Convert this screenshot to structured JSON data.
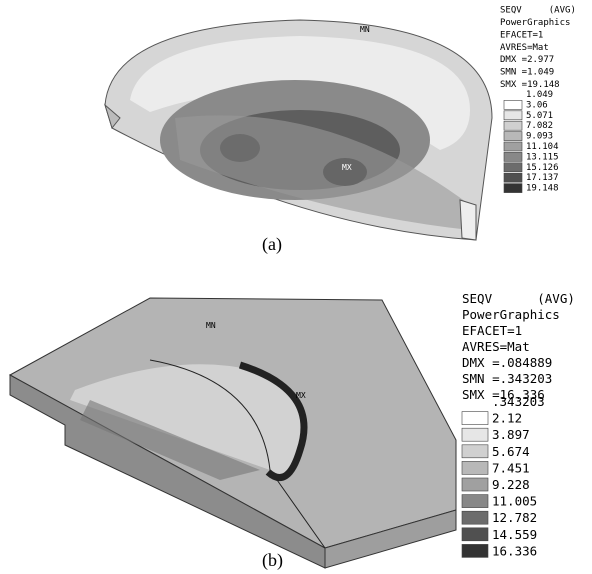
{
  "panels": [
    {
      "caption": "(a)",
      "min_label": "MN",
      "max_label": "MX",
      "legend": {
        "header": [
          "SEQV     (AVG)",
          "PowerGraphics",
          "EFACET=1",
          "AVRES=Mat",
          "DMX =2.977",
          "SMN =1.049",
          "SMX =19.148"
        ],
        "levels": [
          "1.049",
          "3.06",
          "5.071",
          "7.082",
          "9.093",
          "11.104",
          "13.115",
          "15.126",
          "17.137",
          "19.148"
        ]
      }
    },
    {
      "caption": "(b)",
      "min_label": "MN",
      "max_label": "MX",
      "legend": {
        "header": [
          "SEQV      (AVG)",
          "PowerGraphics",
          "EFACET=1",
          "AVRES=Mat",
          "DMX =.084889",
          "SMN =.343203",
          "SMX =16.336"
        ],
        "levels": [
          ".343203",
          "2.12",
          "3.897",
          "5.674",
          "7.451",
          "9.228",
          "11.005",
          "12.782",
          "14.559",
          "16.336"
        ]
      }
    }
  ]
}
